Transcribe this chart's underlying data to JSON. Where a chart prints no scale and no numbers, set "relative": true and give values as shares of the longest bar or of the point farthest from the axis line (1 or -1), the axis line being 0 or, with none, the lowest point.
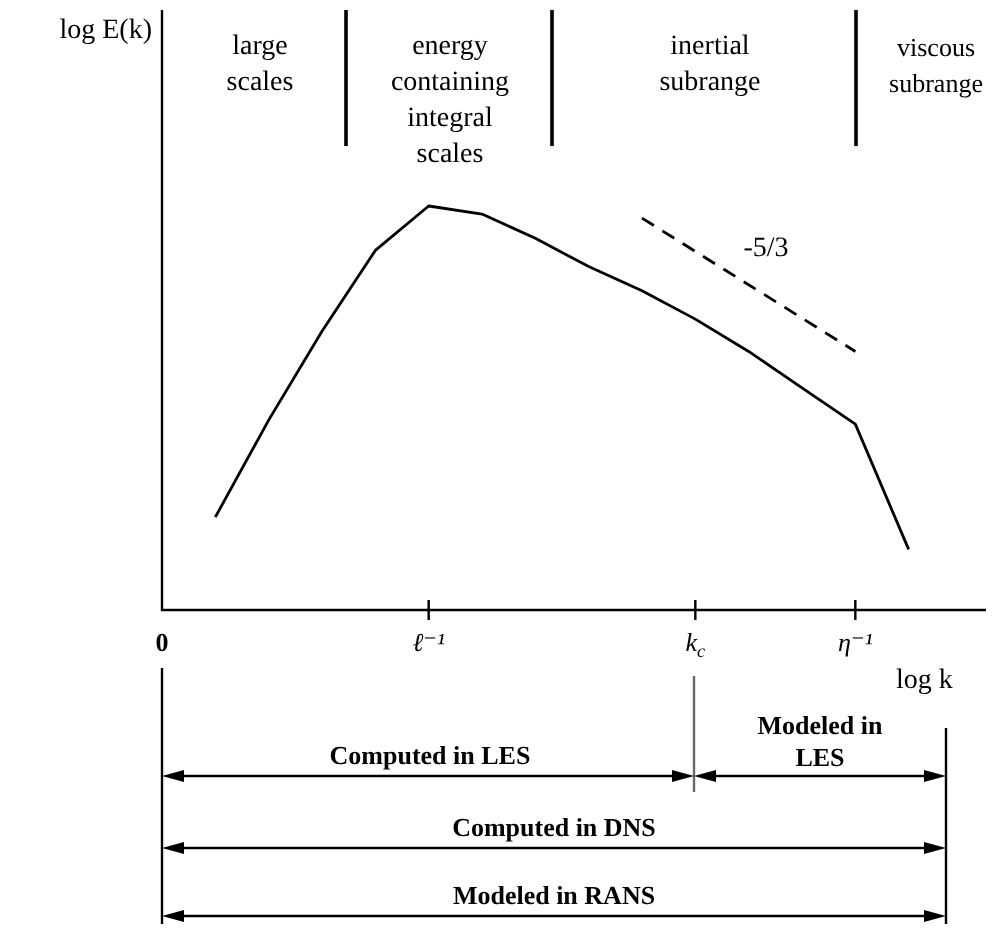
{
  "chart_data": {
    "type": "line",
    "relative": true,
    "xlabel": "log k",
    "categories": [
      "0",
      null,
      null,
      null,
      null,
      "ℓ⁻¹",
      null,
      null,
      null,
      null,
      "k$_{c}$",
      null,
      null,
      "η⁻¹",
      null,
      null
    ],
    "series": [
      {
        "color": "#000000",
        "values": [
          null,
          0.23,
          0.47,
          0.69,
          0.89,
          1.0,
          0.98,
          0.92,
          0.85,
          0.79,
          0.72,
          0.64,
          0.55,
          0.46,
          0.15,
          null
        ]
      },
      {
        "color": "#000000",
        "line_style": "dashed",
        "values": [
          null,
          null,
          null,
          null,
          null,
          null,
          null,
          null,
          null,
          0.97,
          null,
          null,
          null,
          0.64,
          null,
          null
        ]
      }
    ],
    "marker": "none",
    "grid": false,
    "legend": false,
    "annotations": [
      "large\nscales",
      "energy\ncontaining\nintegral\nscales",
      "inertial\nsubrange",
      "viscous\nsubrange",
      "-5/3",
      "Computed in LES",
      "Modeled in\nLES",
      "Computed in DNS",
      "Modeled in RANS",
      "log E(k)"
    ]
  }
}
